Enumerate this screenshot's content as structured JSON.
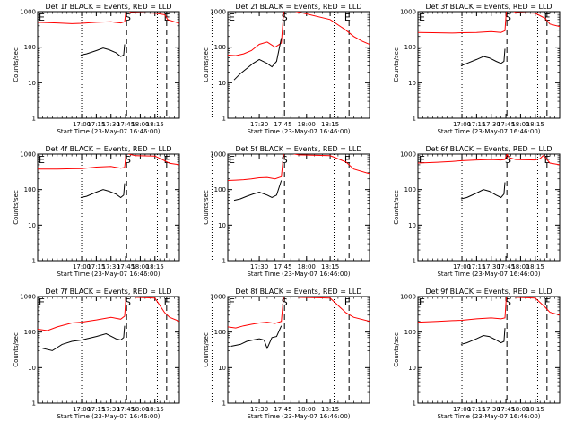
{
  "figure": {
    "type": "panel-grid",
    "log_ticks": [
      "1",
      "10",
      "100",
      "1000"
    ],
    "time_ticks": [
      "17:00",
      "17:15",
      "17:30",
      "17:45",
      "18:00",
      "18:15"
    ],
    "time_ticks_alt": [
      "17:30",
      "17:45",
      "18:00",
      "18:15"
    ],
    "ylabel": "Counts/sec",
    "xlabel": "Start Time (23-May-07 16:46:00)",
    "marker_s": "S",
    "marker_e": "E",
    "colors": {
      "events": "#000000",
      "lld": "#ff0000",
      "axes": "#000000"
    }
  },
  "chart_data": [
    {
      "type": "line",
      "title": "Det 1f BLACK = Events, RED = LLD",
      "ylog": true,
      "ylim": [
        1,
        1000
      ],
      "xlim_min": [
        -45,
        100
      ],
      "dotted_lines_min": [
        0,
        77.5
      ],
      "dashed_lines_min": [
        46,
        87
      ],
      "s_marker_min": 44,
      "e_marker_min": 84,
      "series": [
        {
          "name": "LLD",
          "x": [
            -45,
            -25,
            -10,
            0,
            15,
            30,
            40,
            44,
            46,
            48,
            50,
            75,
            85,
            88,
            95,
            100
          ],
          "y": [
            500,
            480,
            460,
            470,
            500,
            520,
            480,
            520,
            1500,
            1100,
            950,
            900,
            820,
            600,
            520,
            470
          ]
        },
        {
          "name": "Events",
          "x": [
            -1,
            5,
            15,
            22,
            28,
            35,
            40,
            43,
            44
          ],
          "y": [
            60,
            65,
            80,
            95,
            85,
            70,
            55,
            60,
            120
          ]
        }
      ]
    },
    {
      "type": "line",
      "title": "Det 2f BLACK = Events, RED = LLD",
      "ylog": true,
      "ylim": [
        1,
        1000
      ],
      "xlim_min": [
        10,
        100
      ],
      "dotted_lines_min": [
        0,
        77.5
      ],
      "dashed_lines_min": [
        46,
        87
      ],
      "s_marker_min": 44,
      "e_marker_min": 84,
      "series": [
        {
          "name": "LLD",
          "x": [
            10,
            15,
            20,
            25,
            30,
            35,
            40,
            44,
            46,
            48,
            50,
            75,
            85,
            90,
            95,
            100
          ],
          "y": [
            60,
            58,
            65,
            80,
            120,
            140,
            100,
            130,
            2000,
            1500,
            1100,
            600,
            300,
            200,
            150,
            120
          ]
        },
        {
          "name": "Events",
          "x": [
            14,
            18,
            22,
            26,
            30,
            35,
            38,
            41,
            44
          ],
          "y": [
            12,
            18,
            25,
            35,
            45,
            35,
            28,
            40,
            180
          ]
        }
      ]
    },
    {
      "type": "line",
      "title": "Det 3f BLACK = Events, RED = LLD",
      "ylog": true,
      "ylim": [
        1,
        1000
      ],
      "xlim_min": [
        -45,
        100
      ],
      "dotted_lines_min": [
        0,
        77.5
      ],
      "dashed_lines_min": [
        46,
        87
      ],
      "s_marker_min": 44,
      "e_marker_min": 84,
      "series": [
        {
          "name": "LLD",
          "x": [
            -45,
            -30,
            -10,
            0,
            15,
            30,
            40,
            44,
            46,
            48,
            55,
            75,
            85,
            90,
            100
          ],
          "y": [
            260,
            255,
            250,
            255,
            260,
            275,
            260,
            290,
            1800,
            1200,
            950,
            900,
            650,
            450,
            380
          ]
        },
        {
          "name": "Events",
          "x": [
            -1,
            5,
            15,
            22,
            28,
            35,
            40,
            43,
            44
          ],
          "y": [
            30,
            35,
            45,
            55,
            50,
            40,
            35,
            40,
            90
          ]
        }
      ]
    },
    {
      "type": "line",
      "title": "Det 4f BLACK = Events, RED = LLD",
      "ylog": true,
      "ylim": [
        1,
        1000
      ],
      "xlim_min": [
        -45,
        100
      ],
      "dotted_lines_min": [
        0,
        77.5
      ],
      "dashed_lines_min": [
        46,
        87
      ],
      "s_marker_min": 44,
      "e_marker_min": 84,
      "series": [
        {
          "name": "LLD",
          "x": [
            -45,
            -25,
            -10,
            0,
            15,
            30,
            40,
            44,
            46,
            48,
            55,
            75,
            85,
            90,
            100
          ],
          "y": [
            380,
            380,
            385,
            390,
            430,
            450,
            400,
            420,
            1500,
            1000,
            900,
            880,
            650,
            550,
            500
          ]
        },
        {
          "name": "Events",
          "x": [
            -1,
            5,
            15,
            22,
            28,
            35,
            40,
            43,
            44
          ],
          "y": [
            60,
            65,
            85,
            100,
            90,
            75,
            60,
            70,
            150
          ]
        }
      ]
    },
    {
      "type": "line",
      "title": "Det 5f BLACK = Events, RED = LLD",
      "ylog": true,
      "ylim": [
        1,
        1000
      ],
      "xlim_min": [
        10,
        100
      ],
      "dotted_lines_min": [
        0,
        77.5
      ],
      "dashed_lines_min": [
        46,
        87
      ],
      "s_marker_min": 44,
      "e_marker_min": 84,
      "series": [
        {
          "name": "LLD",
          "x": [
            10,
            15,
            20,
            25,
            30,
            35,
            40,
            44,
            46,
            48,
            55,
            75,
            85,
            90,
            100
          ],
          "y": [
            180,
            185,
            190,
            200,
            215,
            220,
            200,
            230,
            1800,
            1100,
            950,
            900,
            600,
            380,
            280
          ]
        },
        {
          "name": "Events",
          "x": [
            14,
            18,
            22,
            26,
            30,
            35,
            38,
            41,
            44
          ],
          "y": [
            50,
            55,
            65,
            75,
            85,
            70,
            60,
            70,
            180
          ]
        }
      ]
    },
    {
      "type": "line",
      "title": "Det 6f BLACK = Events, RED = LLD",
      "ylog": true,
      "ylim": [
        1,
        1000
      ],
      "xlim_min": [
        -45,
        100
      ],
      "dotted_lines_min": [
        0,
        77.5
      ],
      "dashed_lines_min": [
        46,
        87
      ],
      "s_marker_min": 44,
      "e_marker_min": 84,
      "series": [
        {
          "name": "LLD",
          "x": [
            -45,
            -25,
            -10,
            0,
            15,
            30,
            40,
            44,
            46,
            48,
            55,
            75,
            80,
            83,
            85,
            90,
            100
          ],
          "y": [
            560,
            590,
            620,
            650,
            680,
            700,
            680,
            700,
            1000,
            800,
            700,
            680,
            750,
            900,
            800,
            560,
            500
          ]
        },
        {
          "name": "Events",
          "x": [
            -1,
            5,
            15,
            22,
            28,
            35,
            40,
            43,
            44
          ],
          "y": [
            55,
            60,
            80,
            100,
            90,
            70,
            60,
            75,
            160
          ]
        }
      ]
    },
    {
      "type": "line",
      "title": "Det 7f BLACK = Events, RED = LLD",
      "ylog": true,
      "ylim": [
        1,
        1000
      ],
      "xlim_min": [
        -45,
        100
      ],
      "dotted_lines_min": [
        0,
        77.5
      ],
      "dashed_lines_min": [
        46,
        87
      ],
      "s_marker_min": 44,
      "e_marker_min": 84,
      "series": [
        {
          "name": "LLD",
          "x": [
            -45,
            -35,
            -25,
            -10,
            0,
            15,
            30,
            40,
            44,
            46,
            48,
            55,
            75,
            85,
            90,
            100
          ],
          "y": [
            120,
            110,
            140,
            180,
            190,
            220,
            260,
            230,
            280,
            1800,
            1100,
            950,
            900,
            350,
            260,
            200
          ]
        },
        {
          "name": "Events",
          "x": [
            -40,
            -30,
            -20,
            -10,
            0,
            15,
            25,
            35,
            40,
            43,
            44
          ],
          "y": [
            35,
            30,
            45,
            55,
            60,
            75,
            90,
            65,
            60,
            70,
            150
          ]
        }
      ]
    },
    {
      "type": "line",
      "title": "Det 8f BLACK = Events, RED = LLD",
      "ylog": true,
      "ylim": [
        1,
        1000
      ],
      "xlim_min": [
        10,
        100
      ],
      "dotted_lines_min": [
        0,
        77.5
      ],
      "dashed_lines_min": [
        46,
        87
      ],
      "s_marker_min": 44,
      "e_marker_min": 84,
      "series": [
        {
          "name": "LLD",
          "x": [
            10,
            15,
            20,
            25,
            30,
            35,
            40,
            44,
            46,
            48,
            55,
            75,
            85,
            90,
            100
          ],
          "y": [
            140,
            130,
            150,
            165,
            180,
            190,
            175,
            200,
            2000,
            1200,
            950,
            900,
            350,
            260,
            200
          ]
        },
        {
          "name": "Events",
          "x": [
            12,
            18,
            22,
            26,
            30,
            33,
            35,
            38,
            41,
            44
          ],
          "y": [
            40,
            45,
            55,
            60,
            65,
            60,
            35,
            70,
            75,
            150
          ]
        }
      ]
    },
    {
      "type": "line",
      "title": "Det 9f BLACK = Events, RED = LLD",
      "ylog": true,
      "ylim": [
        1,
        1000
      ],
      "xlim_min": [
        -45,
        100
      ],
      "dotted_lines_min": [
        0,
        77.5
      ],
      "dashed_lines_min": [
        46,
        87
      ],
      "s_marker_min": 44,
      "e_marker_min": 84,
      "series": [
        {
          "name": "LLD",
          "x": [
            -45,
            -25,
            -10,
            0,
            15,
            30,
            40,
            44,
            46,
            48,
            55,
            75,
            85,
            90,
            100
          ],
          "y": [
            190,
            200,
            210,
            215,
            235,
            250,
            235,
            250,
            1800,
            1100,
            950,
            900,
            500,
            360,
            300
          ]
        },
        {
          "name": "Events",
          "x": [
            -1,
            5,
            15,
            22,
            28,
            35,
            40,
            43,
            44
          ],
          "y": [
            45,
            50,
            65,
            80,
            75,
            60,
            50,
            55,
            130
          ]
        }
      ]
    }
  ]
}
